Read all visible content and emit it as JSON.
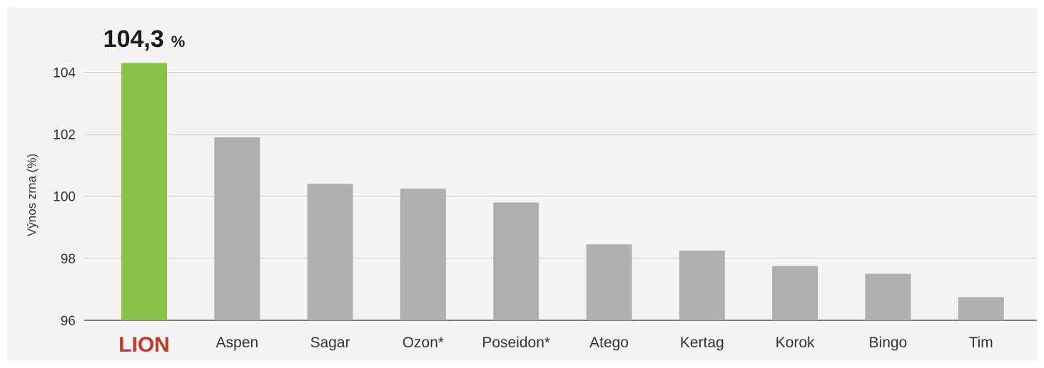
{
  "chart_data": {
    "type": "bar",
    "categories": [
      "LION",
      "Aspen",
      "Sagar",
      "Ozon*",
      "Poseidon*",
      "Atego",
      "Kertag",
      "Korok",
      "Bingo",
      "Tim"
    ],
    "values": [
      104.3,
      101.9,
      100.4,
      100.25,
      99.8,
      98.45,
      98.25,
      97.75,
      97.5,
      96.75
    ],
    "highlight_index": 0,
    "highlight_label": "104,3",
    "highlight_unit": "%",
    "ylabel": "Výnos zrna (%)",
    "ylim": [
      96,
      104.7
    ],
    "yticks": [
      96,
      98,
      100,
      102,
      104
    ],
    "grid": true,
    "colors": {
      "highlight_bar": "#8bc34a",
      "bar": "#b0b0b0",
      "highlight_category": "#c0392b",
      "grid": "#cccccc",
      "background": "#f4f4f4"
    }
  }
}
